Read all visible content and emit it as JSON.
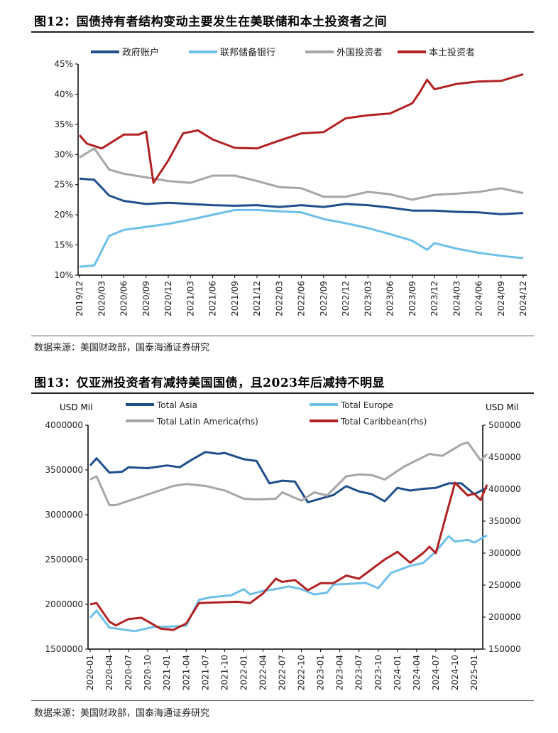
{
  "figure12": {
    "title": "图12：国债持有者结构变动主要发生在美联储和本土投资者之间",
    "source": "数据来源：美国财政部，国泰海通证券研究"
  },
  "figure13": {
    "title": "图13：仅亚洲投资者有减持美国国债，且2023年后减持不明显",
    "source": "数据来源：美国财政部，国泰海通证券研究",
    "left_unit": "USD Mil",
    "right_unit": "USD Mil"
  },
  "chart_data": [
    {
      "type": "line",
      "ylim": [
        10,
        45
      ],
      "yticks": [
        10,
        15,
        20,
        25,
        30,
        35,
        40,
        45
      ],
      "ytick_format": "percent",
      "xrange": [
        "2019-12",
        "2024-12"
      ],
      "xticks": [
        "2019/12",
        "2020/03",
        "2020/06",
        "2020/09",
        "2020/12",
        "2021/03",
        "2021/06",
        "2021/09",
        "2021/12",
        "2022/03",
        "2022/06",
        "2022/09",
        "2022/12",
        "2023/03",
        "2023/06",
        "2023/09",
        "2023/12",
        "2024/03",
        "2024/06",
        "2024/09",
        "2024/12"
      ],
      "legend": "top",
      "grid": false,
      "series": [
        {
          "name": "政府账户",
          "color": "#1f4e8c",
          "points": [
            [
              "2019-12",
              26.0
            ],
            [
              "2020-02",
              25.8
            ],
            [
              "2020-04",
              23.2
            ],
            [
              "2020-06",
              22.3
            ],
            [
              "2020-09",
              21.8
            ],
            [
              "2020-12",
              22.0
            ],
            [
              "2021-03",
              21.8
            ],
            [
              "2021-06",
              21.6
            ],
            [
              "2021-09",
              21.5
            ],
            [
              "2021-12",
              21.6
            ],
            [
              "2022-03",
              21.3
            ],
            [
              "2022-06",
              21.6
            ],
            [
              "2022-09",
              21.3
            ],
            [
              "2022-12",
              21.8
            ],
            [
              "2023-03",
              21.6
            ],
            [
              "2023-06",
              21.2
            ],
            [
              "2023-09",
              20.7
            ],
            [
              "2023-12",
              20.7
            ],
            [
              "2024-03",
              20.5
            ],
            [
              "2024-06",
              20.4
            ],
            [
              "2024-09",
              20.1
            ],
            [
              "2024-12",
              20.3
            ]
          ]
        },
        {
          "name": "联邦储备银行",
          "color": "#6ec0ea",
          "points": [
            [
              "2019-12",
              11.4
            ],
            [
              "2020-02",
              11.6
            ],
            [
              "2020-04",
              16.5
            ],
            [
              "2020-06",
              17.5
            ],
            [
              "2020-09",
              18.0
            ],
            [
              "2020-12",
              18.5
            ],
            [
              "2021-03",
              19.2
            ],
            [
              "2021-06",
              20.0
            ],
            [
              "2021-09",
              20.8
            ],
            [
              "2021-12",
              20.8
            ],
            [
              "2022-03",
              20.6
            ],
            [
              "2022-06",
              20.4
            ],
            [
              "2022-09",
              19.3
            ],
            [
              "2022-12",
              18.6
            ],
            [
              "2023-03",
              17.8
            ],
            [
              "2023-06",
              16.8
            ],
            [
              "2023-09",
              15.7
            ],
            [
              "2023-11",
              14.2
            ],
            [
              "2023-12",
              15.3
            ],
            [
              "2024-03",
              14.4
            ],
            [
              "2024-06",
              13.7
            ],
            [
              "2024-09",
              13.2
            ],
            [
              "2024-12",
              12.8
            ]
          ]
        },
        {
          "name": "外国投资者",
          "color": "#a6a6a6",
          "points": [
            [
              "2019-12",
              29.5
            ],
            [
              "2020-02",
              31.0
            ],
            [
              "2020-04",
              27.5
            ],
            [
              "2020-06",
              26.8
            ],
            [
              "2020-09",
              26.2
            ],
            [
              "2020-12",
              25.6
            ],
            [
              "2021-03",
              25.3
            ],
            [
              "2021-06",
              26.5
            ],
            [
              "2021-09",
              26.5
            ],
            [
              "2021-12",
              25.6
            ],
            [
              "2022-03",
              24.6
            ],
            [
              "2022-06",
              24.4
            ],
            [
              "2022-09",
              23.0
            ],
            [
              "2022-12",
              23.0
            ],
            [
              "2023-03",
              23.8
            ],
            [
              "2023-06",
              23.4
            ],
            [
              "2023-09",
              22.5
            ],
            [
              "2023-12",
              23.3
            ],
            [
              "2024-03",
              23.5
            ],
            [
              "2024-06",
              23.8
            ],
            [
              "2024-09",
              24.4
            ],
            [
              "2024-12",
              23.6
            ]
          ]
        },
        {
          "name": "本土投资者",
          "color": "#b22222",
          "points": [
            [
              "2019-12",
              33.2
            ],
            [
              "2020-01",
              31.8
            ],
            [
              "2020-03",
              31.0
            ],
            [
              "2020-06",
              33.3
            ],
            [
              "2020-08",
              33.3
            ],
            [
              "2020-09",
              33.8
            ],
            [
              "2020-10",
              25.3
            ],
            [
              "2020-12",
              29.0
            ],
            [
              "2021-02",
              33.5
            ],
            [
              "2021-04",
              34.0
            ],
            [
              "2021-06",
              32.5
            ],
            [
              "2021-09",
              31.1
            ],
            [
              "2021-12",
              31.0
            ],
            [
              "2022-03",
              32.3
            ],
            [
              "2022-06",
              33.5
            ],
            [
              "2022-09",
              33.7
            ],
            [
              "2022-12",
              36.0
            ],
            [
              "2023-03",
              36.5
            ],
            [
              "2023-06",
              36.8
            ],
            [
              "2023-09",
              38.5
            ],
            [
              "2023-10",
              40.3
            ],
            [
              "2023-11",
              42.4
            ],
            [
              "2023-12",
              40.8
            ],
            [
              "2024-03",
              41.7
            ],
            [
              "2024-06",
              42.1
            ],
            [
              "2024-09",
              42.2
            ],
            [
              "2024-12",
              43.3
            ]
          ]
        }
      ]
    },
    {
      "type": "line",
      "ylim": [
        1500000,
        4000000
      ],
      "yticks": [
        1500000,
        2000000,
        2500000,
        3000000,
        3500000,
        4000000
      ],
      "ylim_right": [
        150000,
        500000
      ],
      "yticks_right": [
        150000,
        200000,
        250000,
        300000,
        350000,
        400000,
        450000,
        500000
      ],
      "ylabel": "USD Mil",
      "ylabel_right": "USD Mil",
      "xrange": [
        "2020-01",
        "2025-03"
      ],
      "xticks": [
        "2020-01",
        "2020-04",
        "2020-07",
        "2020-10",
        "2021-01",
        "2021-04",
        "2021-07",
        "2021-10",
        "2022-01",
        "2022-04",
        "2022-07",
        "2022-10",
        "2023-01",
        "2023-04",
        "2023-07",
        "2023-10",
        "2024-01",
        "2024-04",
        "2024-07",
        "2024-10",
        "2025-01"
      ],
      "legend": "top",
      "grid": false,
      "series": [
        {
          "name": "Total Asia",
          "axis": "left",
          "color": "#1f4e8c",
          "points": [
            [
              "2020-01",
              3550000
            ],
            [
              "2020-02",
              3630000
            ],
            [
              "2020-04",
              3470000
            ],
            [
              "2020-06",
              3480000
            ],
            [
              "2020-07",
              3530000
            ],
            [
              "2020-10",
              3520000
            ],
            [
              "2021-01",
              3550000
            ],
            [
              "2021-03",
              3530000
            ],
            [
              "2021-05",
              3620000
            ],
            [
              "2021-07",
              3700000
            ],
            [
              "2021-09",
              3680000
            ],
            [
              "2021-10",
              3690000
            ],
            [
              "2022-01",
              3620000
            ],
            [
              "2022-03",
              3600000
            ],
            [
              "2022-05",
              3350000
            ],
            [
              "2022-07",
              3380000
            ],
            [
              "2022-09",
              3370000
            ],
            [
              "2022-11",
              3140000
            ],
            [
              "2023-01",
              3180000
            ],
            [
              "2023-03",
              3220000
            ],
            [
              "2023-05",
              3320000
            ],
            [
              "2023-07",
              3260000
            ],
            [
              "2023-09",
              3230000
            ],
            [
              "2023-11",
              3150000
            ],
            [
              "2024-01",
              3300000
            ],
            [
              "2024-03",
              3270000
            ],
            [
              "2024-05",
              3290000
            ],
            [
              "2024-07",
              3300000
            ],
            [
              "2024-09",
              3350000
            ],
            [
              "2024-11",
              3350000
            ],
            [
              "2025-01",
              3230000
            ],
            [
              "2025-03",
              3300000
            ]
          ]
        },
        {
          "name": "Total Europe",
          "axis": "left",
          "color": "#6ec0ea",
          "points": [
            [
              "2020-01",
              1850000
            ],
            [
              "2020-02",
              1930000
            ],
            [
              "2020-04",
              1740000
            ],
            [
              "2020-06",
              1720000
            ],
            [
              "2020-08",
              1700000
            ],
            [
              "2020-11",
              1750000
            ],
            [
              "2021-01",
              1750000
            ],
            [
              "2021-04",
              1760000
            ],
            [
              "2021-06",
              2050000
            ],
            [
              "2021-08",
              2080000
            ],
            [
              "2021-11",
              2100000
            ],
            [
              "2022-01",
              2170000
            ],
            [
              "2022-02",
              2110000
            ],
            [
              "2022-04",
              2150000
            ],
            [
              "2022-06",
              2170000
            ],
            [
              "2022-08",
              2200000
            ],
            [
              "2022-10",
              2170000
            ],
            [
              "2022-12",
              2110000
            ],
            [
              "2023-02",
              2130000
            ],
            [
              "2023-03",
              2220000
            ],
            [
              "2023-06",
              2230000
            ],
            [
              "2023-08",
              2240000
            ],
            [
              "2023-10",
              2180000
            ],
            [
              "2023-12",
              2350000
            ],
            [
              "2024-03",
              2430000
            ],
            [
              "2024-05",
              2460000
            ],
            [
              "2024-07",
              2590000
            ],
            [
              "2024-09",
              2760000
            ],
            [
              "2024-10",
              2700000
            ],
            [
              "2024-12",
              2720000
            ],
            [
              "2025-01",
              2690000
            ],
            [
              "2025-03",
              2770000
            ]
          ]
        },
        {
          "name": "Total Latin America(rhs)",
          "axis": "right",
          "color": "#a6a6a6",
          "points": [
            [
              "2020-01",
              415000
            ],
            [
              "2020-02",
              420000
            ],
            [
              "2020-04",
              375000
            ],
            [
              "2020-05",
              375000
            ],
            [
              "2020-08",
              385000
            ],
            [
              "2020-11",
              395000
            ],
            [
              "2021-02",
              405000
            ],
            [
              "2021-04",
              408000
            ],
            [
              "2021-07",
              405000
            ],
            [
              "2021-10",
              398000
            ],
            [
              "2022-01",
              385000
            ],
            [
              "2022-03",
              384000
            ],
            [
              "2022-06",
              385000
            ],
            [
              "2022-07",
              395000
            ],
            [
              "2022-10",
              382000
            ],
            [
              "2022-12",
              395000
            ],
            [
              "2023-02",
              390000
            ],
            [
              "2023-05",
              420000
            ],
            [
              "2023-07",
              423000
            ],
            [
              "2023-09",
              422000
            ],
            [
              "2023-11",
              415000
            ],
            [
              "2024-02",
              435000
            ],
            [
              "2024-04",
              445000
            ],
            [
              "2024-06",
              455000
            ],
            [
              "2024-08",
              452000
            ],
            [
              "2024-11",
              470000
            ],
            [
              "2024-12",
              473000
            ],
            [
              "2025-02",
              445000
            ],
            [
              "2025-03",
              455000
            ]
          ]
        },
        {
          "name": "Total Caribbean(rhs)",
          "axis": "right",
          "color": "#b22222",
          "points": [
            [
              "2020-01",
              220000
            ],
            [
              "2020-02",
              222000
            ],
            [
              "2020-04",
              193000
            ],
            [
              "2020-05",
              187000
            ],
            [
              "2020-07",
              197000
            ],
            [
              "2020-09",
              199000
            ],
            [
              "2020-12",
              182000
            ],
            [
              "2021-02",
              180000
            ],
            [
              "2021-04",
              190000
            ],
            [
              "2021-06",
              222000
            ],
            [
              "2021-09",
              223000
            ],
            [
              "2021-12",
              224000
            ],
            [
              "2022-02",
              222000
            ],
            [
              "2022-04",
              237000
            ],
            [
              "2022-06",
              260000
            ],
            [
              "2022-07",
              255000
            ],
            [
              "2022-09",
              258000
            ],
            [
              "2022-11",
              242000
            ],
            [
              "2023-01",
              253000
            ],
            [
              "2023-03",
              253000
            ],
            [
              "2023-05",
              265000
            ],
            [
              "2023-07",
              260000
            ],
            [
              "2023-09",
              275000
            ],
            [
              "2023-11",
              290000
            ],
            [
              "2024-01",
              302000
            ],
            [
              "2024-03",
              285000
            ],
            [
              "2024-05",
              300000
            ],
            [
              "2024-06",
              310000
            ],
            [
              "2024-07",
              300000
            ],
            [
              "2024-10",
              410000
            ],
            [
              "2024-12",
              390000
            ],
            [
              "2025-01",
              393000
            ],
            [
              "2025-02",
              383000
            ],
            [
              "2025-03",
              407000
            ]
          ]
        }
      ]
    }
  ]
}
